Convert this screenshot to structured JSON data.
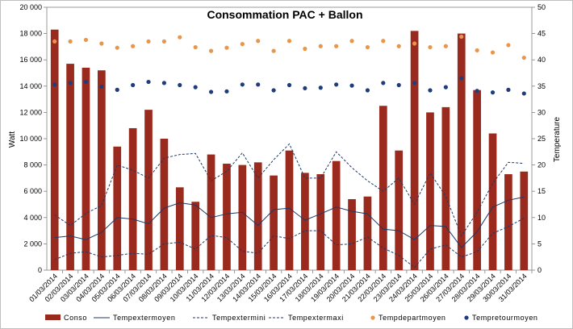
{
  "chart_data": {
    "type": "bar",
    "title": "Consommation PAC + Ballon",
    "ylabel_left": "Watt",
    "ylabel_right": "Temperature",
    "ylim_left": [
      0,
      20000
    ],
    "yticks_left": [
      "0",
      "2 000",
      "4 000",
      "6 000",
      "8 000",
      "10 000",
      "12 000",
      "14 000",
      "16 000",
      "18 000",
      "20 000"
    ],
    "ylim_right": [
      0,
      50
    ],
    "yticks_right": [
      "0",
      "5",
      "10",
      "15",
      "20",
      "25",
      "30",
      "35",
      "40",
      "45",
      "50"
    ],
    "grid": false,
    "legend_position": "bottom",
    "colors": {
      "bars": "#9b2a1e",
      "lines": "#1f3864",
      "depart": "#e8964a",
      "retour": "#1f3d7a"
    },
    "categories": [
      "01/03/2014",
      "02/03/2014",
      "03/03/2014",
      "04/03/2014",
      "05/03/2014",
      "06/03/2014",
      "07/03/2014",
      "08/03/2014",
      "09/03/2014",
      "10/03/2014",
      "11/03/2014",
      "12/03/2014",
      "13/03/2014",
      "14/03/2014",
      "15/03/2014",
      "16/03/2014",
      "17/03/2014",
      "18/03/2014",
      "19/03/2014",
      "20/03/2014",
      "21/03/2014",
      "22/03/2014",
      "23/03/2014",
      "24/03/2014",
      "25/03/2014",
      "26/03/2014",
      "27/03/2014",
      "28/03/2014",
      "29/03/2014",
      "30/03/2014",
      "31/03/2014"
    ],
    "series": [
      {
        "name": "Conso",
        "type": "bar",
        "axis": "left",
        "values": [
          18300,
          15700,
          15400,
          15200,
          9400,
          10800,
          12200,
          10000,
          6300,
          5200,
          8800,
          8100,
          8000,
          8200,
          7200,
          9100,
          7400,
          7300,
          8300,
          5400,
          5600,
          12500,
          9100,
          18200,
          12000,
          12400,
          18000,
          13700,
          10400,
          7300,
          7500
        ]
      },
      {
        "name": "Tempextermoyen",
        "type": "line",
        "style": "solid",
        "axis": "right",
        "values": [
          6.2,
          6.5,
          5.8,
          7.2,
          10.0,
          9.7,
          8.8,
          11.8,
          12.8,
          12.4,
          10.0,
          10.7,
          11.0,
          8.5,
          11.5,
          11.8,
          9.5,
          10.7,
          12.0,
          11.2,
          10.7,
          7.8,
          7.5,
          5.8,
          8.5,
          8.3,
          4.3,
          7.3,
          12.0,
          13.3,
          13.9
        ]
      },
      {
        "name": "Tempextermini",
        "type": "line",
        "style": "dashed",
        "axis": "right",
        "values": [
          2.0,
          3.2,
          3.5,
          2.5,
          2.8,
          3.2,
          3.0,
          5.0,
          5.3,
          4.0,
          6.6,
          6.2,
          3.6,
          3.2,
          6.5,
          6.0,
          7.5,
          7.5,
          4.8,
          5.0,
          6.3,
          4.2,
          2.8,
          0.5,
          4.0,
          4.8,
          2.5,
          3.5,
          7.0,
          8.3,
          9.9
        ]
      },
      {
        "name": "Tempextermaxi",
        "type": "line",
        "style": "dashed",
        "axis": "right",
        "values": [
          10.5,
          8.5,
          10.8,
          12.3,
          20.0,
          19.0,
          17.5,
          21.3,
          22.0,
          22.2,
          17.0,
          18.8,
          22.3,
          17.5,
          21.0,
          24.0,
          17.5,
          17.5,
          22.5,
          19.5,
          17.0,
          15.0,
          17.5,
          12.5,
          18.5,
          14.0,
          6.5,
          11.0,
          16.5,
          20.5,
          20.3
        ]
      },
      {
        "name": "Tempdepartmoyen",
        "type": "scatter",
        "axis": "right",
        "values": [
          43.5,
          43.5,
          43.8,
          43.1,
          42.3,
          42.6,
          43.5,
          43.5,
          44.3,
          42.4,
          41.7,
          42.3,
          43.0,
          43.6,
          41.7,
          43.6,
          42.1,
          42.6,
          42.6,
          43.6,
          42.4,
          43.6,
          42.6,
          43.1,
          42.4,
          42.6,
          44.4,
          41.8,
          41.4,
          42.8,
          40.4
        ]
      },
      {
        "name": "Tempretourmoyen",
        "type": "scatter",
        "axis": "right",
        "values": [
          35.3,
          35.6,
          35.8,
          34.9,
          34.3,
          35.2,
          35.8,
          35.6,
          35.2,
          34.8,
          33.9,
          34.0,
          35.3,
          35.3,
          34.2,
          35.2,
          34.6,
          34.7,
          35.3,
          35.1,
          34.2,
          35.6,
          35.2,
          35.6,
          34.2,
          34.8,
          36.5,
          34.1,
          33.8,
          34.3,
          33.6
        ]
      }
    ]
  }
}
